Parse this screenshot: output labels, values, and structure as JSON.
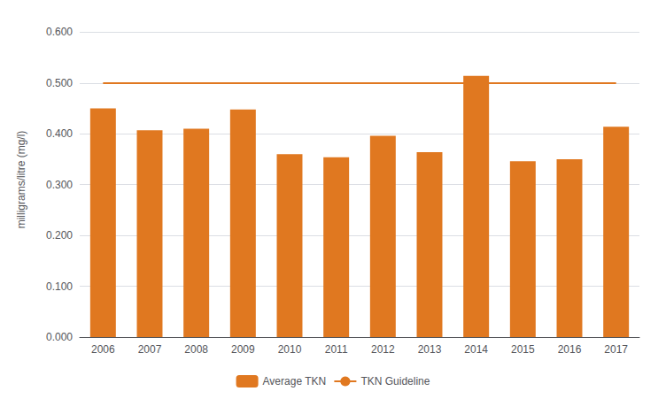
{
  "chart_data": {
    "type": "bar",
    "categories": [
      "2006",
      "2007",
      "2008",
      "2009",
      "2010",
      "2011",
      "2012",
      "2013",
      "2014",
      "2015",
      "2016",
      "2017"
    ],
    "series": [
      {
        "name": "Average TKN",
        "type": "bar",
        "color": "#E07820",
        "values": [
          0.45,
          0.407,
          0.41,
          0.448,
          0.36,
          0.354,
          0.396,
          0.364,
          0.514,
          0.346,
          0.35,
          0.414
        ]
      },
      {
        "name": "TKN Guideline",
        "type": "line",
        "color": "#E07820",
        "values": [
          0.5,
          0.5,
          0.5,
          0.5,
          0.5,
          0.5,
          0.5,
          0.5,
          0.5,
          0.5,
          0.5,
          0.5
        ]
      }
    ],
    "ylabel": "milligrams/litre (mg/l)",
    "ylim": [
      0.0,
      0.62
    ],
    "yticks": [
      {
        "value": 0.0,
        "label": "0.000"
      },
      {
        "value": 0.1,
        "label": "0.100"
      },
      {
        "value": 0.2,
        "label": "0.200"
      },
      {
        "value": 0.3,
        "label": "0.300"
      },
      {
        "value": 0.4,
        "label": "0.400"
      },
      {
        "value": 0.5,
        "label": "0.500"
      },
      {
        "value": 0.6,
        "label": "0.600"
      }
    ],
    "grid": true,
    "legend": "bottom"
  }
}
